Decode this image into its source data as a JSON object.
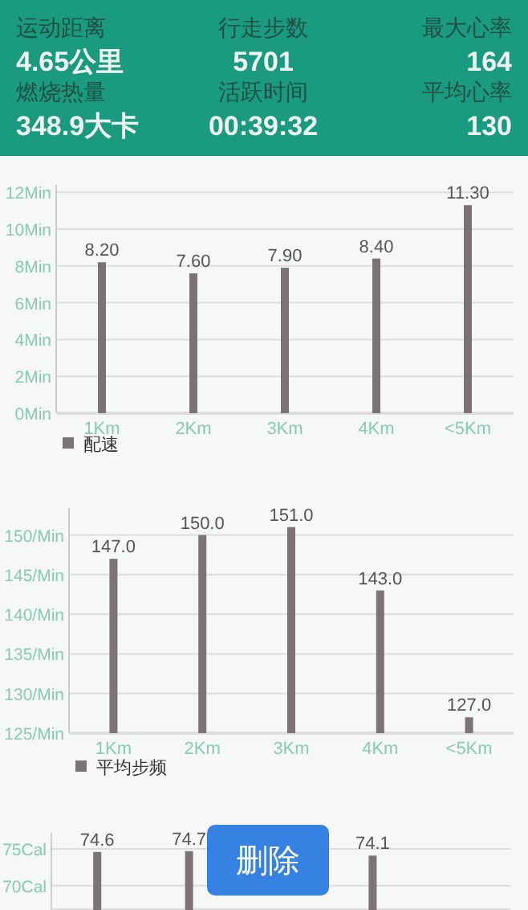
{
  "chart_data": [
    {
      "type": "other",
      "annotations": [
        "运动距离",
        "行走步数",
        "最大心率",
        "4.65公里",
        "5701",
        "164",
        "燃烧热量",
        "活跃时间",
        "平均心率",
        "348.9大卡",
        "00:39:32",
        "130"
      ]
    },
    {
      "type": "bar",
      "categories": [
        "1Km",
        "2Km",
        "3Km",
        "4Km",
        "<5Km"
      ],
      "series": [
        {
          "name": "配速",
          "color": "#7b7374",
          "values": [
            8.2,
            7.6,
            7.9,
            8.4,
            11.3
          ],
          "value_labels": [
            "8.20",
            "7.60",
            "7.90",
            "8.40",
            "11.30"
          ]
        }
      ],
      "ylim": [
        0,
        12.4
      ],
      "yticks": [
        {
          "value": 0,
          "label": "0Min"
        },
        {
          "value": 2,
          "label": "2Min"
        },
        {
          "value": 4,
          "label": "4Min"
        },
        {
          "value": 6,
          "label": "6Min"
        },
        {
          "value": 8,
          "label": "8Min"
        },
        {
          "value": 10,
          "label": "10Min"
        },
        {
          "value": 12,
          "label": "12Min"
        }
      ],
      "grid": "y",
      "legend": "bottom left"
    },
    {
      "type": "bar",
      "categories": [
        "1Km",
        "2Km",
        "3Km",
        "4Km",
        "<5Km"
      ],
      "series": [
        {
          "name": "平均步频",
          "color": "#7b7374",
          "values": [
            147,
            150,
            151,
            143,
            127
          ],
          "value_labels": [
            "147.0",
            "150.0",
            "151.0",
            "143.0",
            "127.0"
          ]
        }
      ],
      "ylim": [
        125,
        153.4
      ],
      "yticks": [
        {
          "value": 125,
          "label": "125/Min"
        },
        {
          "value": 130,
          "label": "130/Min"
        },
        {
          "value": 135,
          "label": "135/Min"
        },
        {
          "value": 140,
          "label": "140/Min"
        },
        {
          "value": 145,
          "label": "145/Min"
        },
        {
          "value": 150,
          "label": "150/Min"
        }
      ],
      "grid": "y",
      "legend": "bottom left"
    },
    {
      "type": "bar",
      "categories": [
        null,
        null,
        null,
        null,
        null
      ],
      "series": [
        {
          "color": "#7b7374",
          "values": [
            74.6,
            74.7,
            null,
            74.1,
            null
          ],
          "value_labels": [
            "74.6",
            "74.7",
            null,
            "74.1",
            null
          ]
        }
      ],
      "ylim": [
        66.7,
        77.2
      ],
      "yticks": [
        {
          "value": 70,
          "label": "70Cal"
        },
        {
          "value": 75,
          "label": "75Cal"
        }
      ],
      "grid": "y",
      "annotations": [
        "删除"
      ]
    }
  ]
}
